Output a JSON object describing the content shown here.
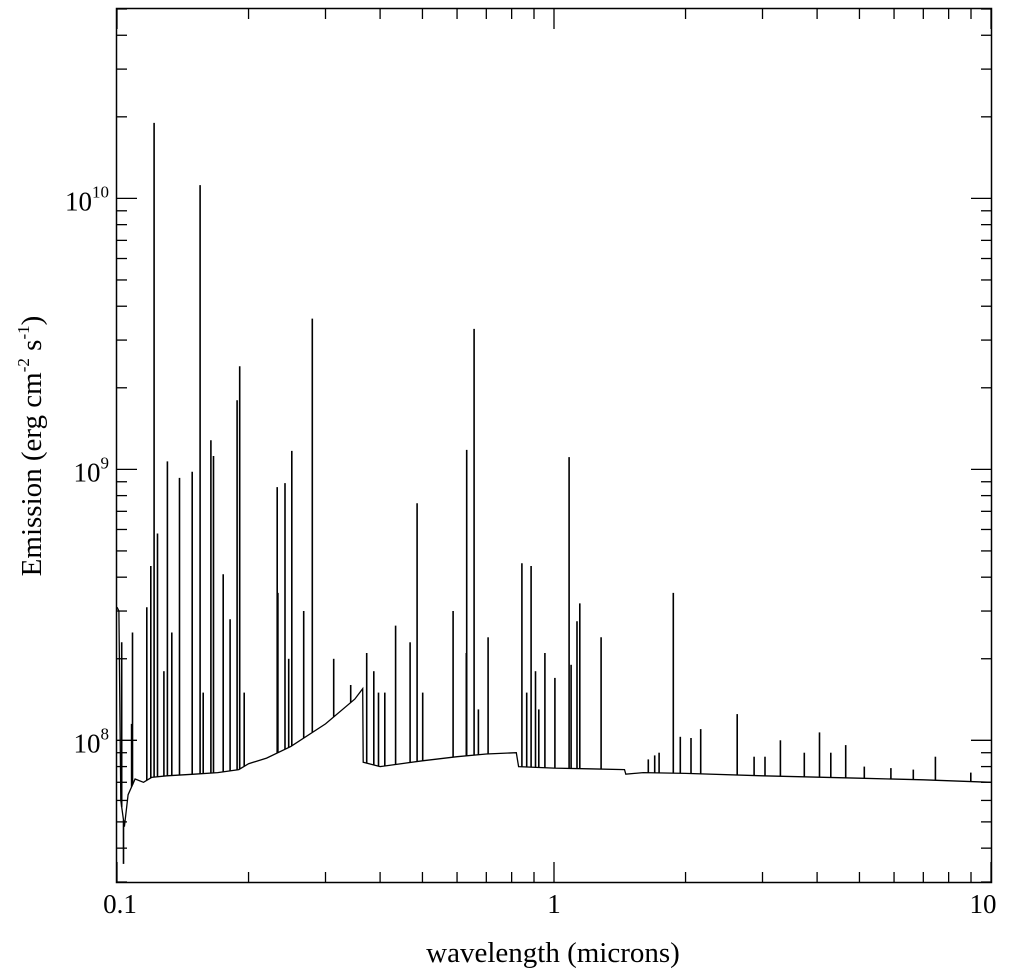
{
  "chart_data": {
    "type": "line",
    "xlabel": "wavelength (microns)",
    "ylabel": "Emission (erg cm-2 s-1)",
    "ylabel_parts": {
      "pre": "Emission (erg cm",
      "sup1": "-2",
      "mid": " s",
      "sup2": "-1",
      "post": ")"
    },
    "x_scale": "log",
    "y_scale": "log",
    "xlim": [
      0.1,
      10
    ],
    "ylim": [
      30000000,
      50000000000
    ],
    "x_ticks": [
      {
        "value": 0.1,
        "label": "0.1"
      },
      {
        "value": 1,
        "label": "1"
      },
      {
        "value": 10,
        "label": "10"
      }
    ],
    "y_ticks": [
      {
        "value": 100000000,
        "base": "10",
        "exp": "8"
      },
      {
        "value": 1000000000,
        "base": "10",
        "exp": "9"
      },
      {
        "value": 10000000000,
        "base": "10",
        "exp": "10"
      }
    ],
    "grid": false,
    "series": [
      {
        "continuum": [
          [
            0.1,
            310000000
          ],
          [
            0.101,
            300000000
          ],
          [
            0.102,
            60000000
          ],
          [
            0.104,
            48000000
          ],
          [
            0.106,
            63000000
          ],
          [
            0.11,
            72000000
          ],
          [
            0.115,
            70000000
          ],
          [
            0.12,
            73000000
          ],
          [
            0.13,
            74000000
          ],
          [
            0.15,
            75000000
          ],
          [
            0.17,
            76000000
          ],
          [
            0.19,
            78000000
          ],
          [
            0.2,
            82000000
          ],
          [
            0.22,
            86000000
          ],
          [
            0.25,
            95000000
          ],
          [
            0.3,
            115000000
          ],
          [
            0.35,
            142000000
          ],
          [
            0.365,
            155000000
          ],
          [
            0.366,
            83000000
          ],
          [
            0.4,
            80000000
          ],
          [
            0.5,
            84000000
          ],
          [
            0.6,
            87000000
          ],
          [
            0.7,
            89000000
          ],
          [
            0.82,
            90000000
          ],
          [
            0.83,
            80000000
          ],
          [
            1.0,
            79000000
          ],
          [
            1.2,
            78500000
          ],
          [
            1.45,
            78000000
          ],
          [
            1.46,
            75000000
          ],
          [
            1.6,
            76000000
          ],
          [
            2.0,
            75500000
          ],
          [
            3.0,
            74000000
          ],
          [
            5.0,
            72500000
          ],
          [
            7.0,
            71500000
          ],
          [
            10.0,
            70000000
          ]
        ],
        "lines": [
          [
            0.1025,
            230000000
          ],
          [
            0.1035,
            35000000
          ],
          [
            0.108,
            115000000
          ],
          [
            0.1085,
            250000000
          ],
          [
            0.117,
            310000000
          ],
          [
            0.1195,
            440000000
          ],
          [
            0.1216,
            19000000000
          ],
          [
            0.1238,
            580000000
          ],
          [
            0.128,
            180000000
          ],
          [
            0.1304,
            1070000000
          ],
          [
            0.1335,
            250000000
          ],
          [
            0.139,
            930000000
          ],
          [
            0.1486,
            980000000
          ],
          [
            0.1549,
            11200000000
          ],
          [
            0.1575,
            150000000
          ],
          [
            0.164,
            1280000000
          ],
          [
            0.1663,
            1120000000
          ],
          [
            0.175,
            410000000
          ],
          [
            0.1815,
            280000000
          ],
          [
            0.1883,
            1800000000
          ],
          [
            0.1909,
            2400000000
          ],
          [
            0.1955,
            150000000
          ],
          [
            0.2326,
            860000000
          ],
          [
            0.2335,
            350000000
          ],
          [
            0.2424,
            890000000
          ],
          [
            0.2471,
            200000000
          ],
          [
            0.2512,
            1170000000
          ],
          [
            0.2675,
            300000000
          ],
          [
            0.2798,
            3600000000
          ],
          [
            0.3133,
            200000000
          ],
          [
            0.3426,
            160000000
          ],
          [
            0.3727,
            210000000
          ],
          [
            0.3869,
            180000000
          ],
          [
            0.3967,
            150000000
          ],
          [
            0.4101,
            150000000
          ],
          [
            0.4341,
            265000000
          ],
          [
            0.4686,
            230000000
          ],
          [
            0.4861,
            750000000
          ],
          [
            0.5007,
            150000000
          ],
          [
            0.5876,
            300000000
          ],
          [
            0.63,
            210000000
          ],
          [
            0.6312,
            1180000000
          ],
          [
            0.6563,
            3300000000
          ],
          [
            0.6716,
            130000000
          ],
          [
            0.7065,
            240000000
          ],
          [
            0.8446,
            450000000
          ],
          [
            0.8662,
            150000000
          ],
          [
            0.8863,
            440000000
          ],
          [
            0.9069,
            180000000
          ],
          [
            0.9229,
            130000000
          ],
          [
            0.9531,
            210000000
          ],
          [
            1.005,
            170000000
          ],
          [
            1.083,
            1110000000
          ],
          [
            1.094,
            190000000
          ],
          [
            1.1287,
            275000000
          ],
          [
            1.1455,
            320000000
          ],
          [
            1.2818,
            240000000
          ],
          [
            1.644,
            85000000
          ],
          [
            1.7,
            88000000
          ],
          [
            1.74,
            90000000
          ],
          [
            1.8751,
            350000000
          ],
          [
            1.945,
            103000000
          ],
          [
            2.0587,
            102000000
          ],
          [
            2.1661,
            110000000
          ],
          [
            2.626,
            125000000
          ],
          [
            2.87,
            87000000
          ],
          [
            3.04,
            87000000
          ],
          [
            3.297,
            100000000
          ],
          [
            3.74,
            90000000
          ],
          [
            4.05,
            107000000
          ],
          [
            4.3,
            90000000
          ],
          [
            4.65,
            96000000
          ],
          [
            5.13,
            80000000
          ],
          [
            5.9,
            79000000
          ],
          [
            6.64,
            78000000
          ],
          [
            7.46,
            87000000
          ],
          [
            8.99,
            76000000
          ]
        ]
      }
    ]
  }
}
